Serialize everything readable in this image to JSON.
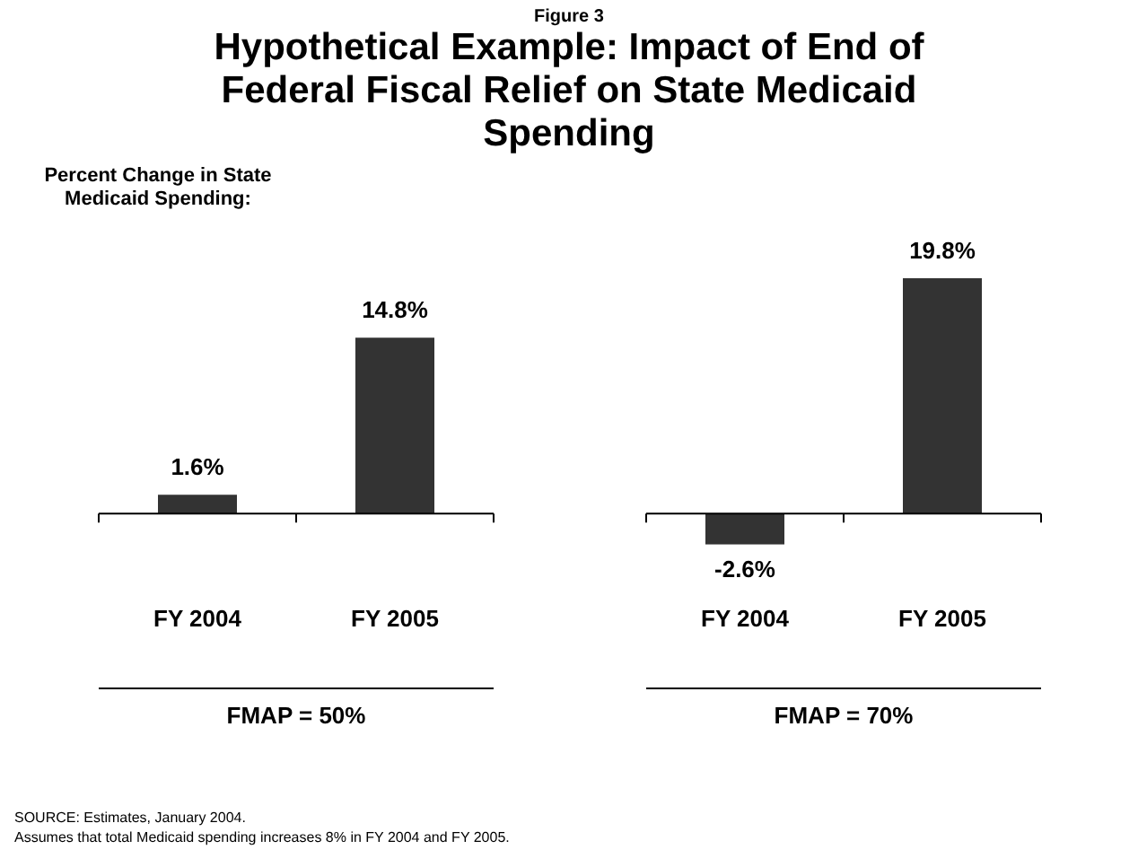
{
  "chart_data": [
    {
      "type": "other",
      "subtitle": "Figure 3",
      "title": "Hypothetical Example:  Impact of End of Federal Fiscal Relief on State Medicaid Spending"
    },
    {
      "type": "bar",
      "ylabel": "Percent Change in State Medicaid Spending:",
      "xlabel": "FMAP = 50%",
      "categories": [
        "FY 2004",
        "FY 2005"
      ],
      "values": [
        1.6,
        14.8
      ],
      "value_labels": [
        "1.6%",
        "14.8%"
      ],
      "color": "#333333",
      "tick_labels": "x",
      "grid": false,
      "legend": false,
      "annotations": [
        "SOURCE: Estimates, January 2004.",
        "Assumes that total Medicaid spending increases 8% in FY 2004 and FY 2005."
      ]
    },
    {
      "type": "bar",
      "xlabel": "FMAP = 70%",
      "categories": [
        "FY 2004",
        "FY 2005"
      ],
      "values": [
        -2.6,
        19.8
      ],
      "value_labels": [
        "-2.6%",
        "19.8%"
      ],
      "color": "#333333",
      "tick_labels": "x",
      "grid": false,
      "legend": false
    }
  ]
}
